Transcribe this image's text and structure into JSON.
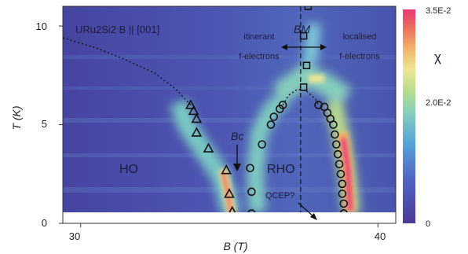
{
  "chart_data": {
    "type": "heatmap",
    "title": "URu2Si2  B || [001]",
    "xlabel": "B (T)",
    "ylabel": "T (K)",
    "xlim": [
      29.4,
      40.6
    ],
    "ylim": [
      0,
      11
    ],
    "x_ticks": [
      30,
      40
    ],
    "y_ticks": [
      0,
      5,
      10
    ],
    "colorbar": {
      "label": "χ",
      "ticks": [
        "3.5E-2",
        "2.0E-2",
        "0"
      ],
      "tick_values": [
        0.035,
        0.02,
        0
      ]
    },
    "annotations": {
      "HO": "HO",
      "RHO": "RHO",
      "Bc": "Bc",
      "BM": "BM",
      "QCEP": "QCEP?",
      "itinerant_line1": "itinerant",
      "itinerant_line2": "f-electrons",
      "localised_line1": "localised",
      "localised_line2": "f-electrons"
    },
    "series": [
      {
        "marker": "triangle",
        "points": [
          [
            33.7,
            6.0
          ],
          [
            33.8,
            5.7
          ],
          [
            33.9,
            5.3
          ],
          [
            33.9,
            4.6
          ],
          [
            34.3,
            3.8
          ],
          [
            34.9,
            2.7
          ],
          [
            35.0,
            1.5
          ],
          [
            35.1,
            0.6
          ]
        ]
      },
      {
        "marker": "circle",
        "points": [
          [
            35.7,
            2.8
          ],
          [
            35.75,
            1.6
          ],
          [
            35.75,
            0.5
          ],
          [
            36.1,
            4.0
          ],
          [
            36.4,
            5.0
          ],
          [
            36.5,
            5.4
          ],
          [
            36.7,
            5.8
          ],
          [
            36.8,
            6.0
          ],
          [
            38.0,
            6.0
          ],
          [
            38.2,
            5.9
          ],
          [
            38.3,
            5.6
          ],
          [
            38.4,
            5.3
          ],
          [
            38.5,
            5.0
          ],
          [
            38.55,
            4.5
          ],
          [
            38.6,
            4.0
          ],
          [
            38.65,
            3.5
          ],
          [
            38.7,
            3.0
          ],
          [
            38.75,
            2.5
          ],
          [
            38.8,
            2.0
          ],
          [
            38.8,
            1.5
          ],
          [
            38.85,
            1.0
          ],
          [
            38.85,
            0.5
          ]
        ]
      },
      {
        "marker": "square",
        "points": [
          [
            37.5,
            6.9
          ],
          [
            37.6,
            8.0
          ],
          [
            37.5,
            9.5
          ],
          [
            37.65,
            11.0
          ]
        ]
      }
    ],
    "dashed_vertical_line_x": 37.4,
    "dotted_boundaries": [
      [
        [
          29.4,
          9.4
        ],
        [
          30.5,
          8.9
        ],
        [
          31.5,
          8.3
        ],
        [
          32.5,
          7.6
        ],
        [
          33.2,
          6.8
        ],
        [
          33.7,
          6.0
        ]
      ],
      [
        [
          36.8,
          6.0
        ],
        [
          37.0,
          6.5
        ],
        [
          37.3,
          6.8
        ],
        [
          37.6,
          6.7
        ],
        [
          37.9,
          6.3
        ],
        [
          38.0,
          6.0
        ]
      ]
    ]
  }
}
